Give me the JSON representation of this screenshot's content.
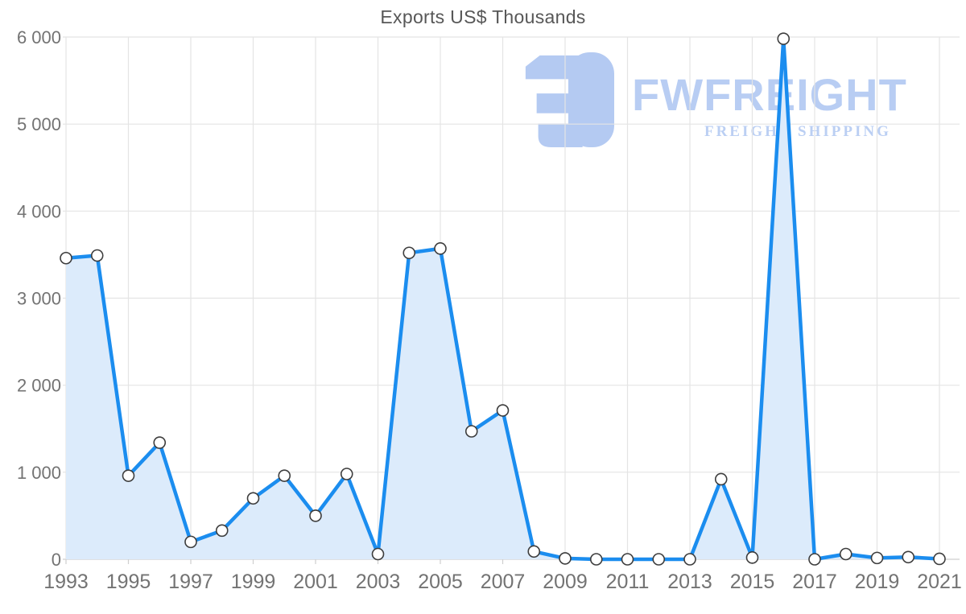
{
  "title": "Exports US$ Thousands",
  "watermark": {
    "brand": "FWFREIGHT",
    "tagline": "FREIGHT SHIPPING",
    "logo_icon": "fwfreight-logo-icon",
    "color": "#aec6f1"
  },
  "colors": {
    "line": "#1b8def",
    "area_fill": "#dcebfb",
    "marker_fill": "#ffffff",
    "marker_stroke": "#3d3d3d",
    "grid": "#e4e4e4",
    "zero_line": "#cfcfcf",
    "axis_text": "#737373",
    "title_text": "#575757"
  },
  "chart_data": {
    "type": "area",
    "title": "Exports US$ Thousands",
    "xlabel": "",
    "ylabel": "",
    "grid": true,
    "legend": false,
    "ylim": [
      0,
      6000
    ],
    "ytick_step": 1000,
    "ytick_labels": [
      "0",
      "1 000",
      "2 000",
      "3 000",
      "4 000",
      "5 000",
      "6 000"
    ],
    "xtick_labels": [
      "1993",
      "1995",
      "1997",
      "1999",
      "2001",
      "2003",
      "2005",
      "2007",
      "2009",
      "2011",
      "2013",
      "2015",
      "2017",
      "2019",
      "2021"
    ],
    "x": [
      1993,
      1994,
      1995,
      1996,
      1997,
      1998,
      1999,
      2000,
      2001,
      2002,
      2003,
      2004,
      2005,
      2006,
      2007,
      2008,
      2009,
      2010,
      2011,
      2012,
      2013,
      2014,
      2015,
      2016,
      2017,
      2018,
      2019,
      2020,
      2021
    ],
    "values": [
      3460,
      3490,
      960,
      1340,
      200,
      330,
      700,
      960,
      500,
      980,
      60,
      3520,
      3570,
      1470,
      1710,
      90,
      10,
      0,
      0,
      0,
      0,
      920,
      20,
      5980,
      0,
      60,
      15,
      25,
      5
    ]
  }
}
